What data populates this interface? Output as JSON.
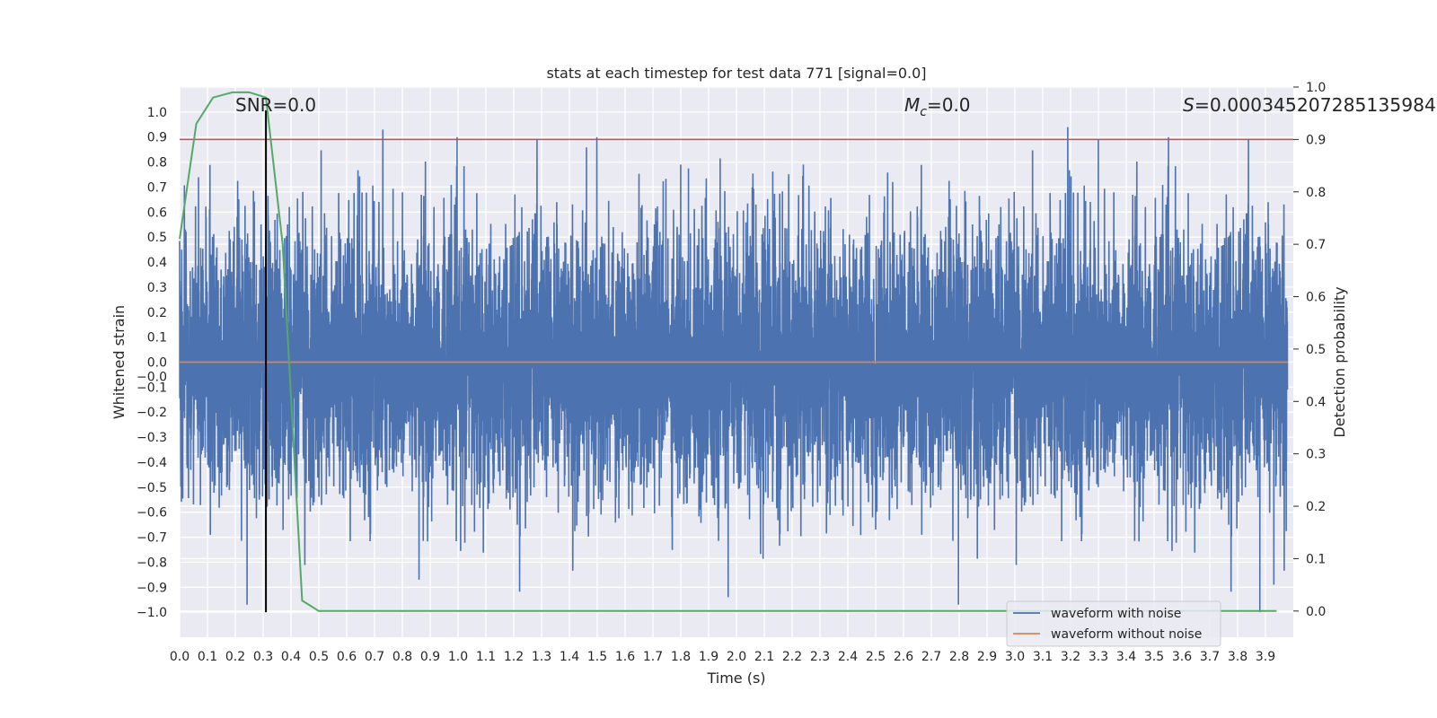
{
  "chart_data": {
    "type": "line",
    "title": "stats at each timestep for test data 771 [signal=0.0]",
    "xlabel": "Time (s)",
    "ylabel": "Whitened strain",
    "y2label": "Detection probability",
    "xlim": [
      0.0,
      4.0
    ],
    "ylim": [
      -1.1,
      1.1
    ],
    "y2lim": [
      -0.05,
      1.0
    ],
    "grid": true,
    "legend_position": "bottom-right",
    "x_ticks": [
      "0.0",
      "0.1",
      "0.2",
      "0.3",
      "0.4",
      "0.5",
      "0.6",
      "0.7",
      "0.8",
      "0.9",
      "1.0",
      "1.1",
      "1.2",
      "1.3",
      "1.4",
      "1.5",
      "1.6",
      "1.7",
      "1.8",
      "1.9",
      "2.0",
      "2.1",
      "2.2",
      "2.3",
      "2.4",
      "2.5",
      "2.6",
      "2.7",
      "2.8",
      "2.9",
      "3.0",
      "3.1",
      "3.2",
      "3.3",
      "3.4",
      "3.5",
      "3.6",
      "3.7",
      "3.8",
      "3.9"
    ],
    "y_ticks": [
      "1.0",
      "0.9",
      "0.8",
      "0.7",
      "0.6",
      "0.5",
      "0.4",
      "0.3",
      "0.2",
      "0.1",
      "0.0",
      "-0.0",
      "-0.1",
      "-0.2",
      "-0.3",
      "-0.4",
      "-0.5",
      "-0.6",
      "-0.7",
      "-0.8",
      "-0.9",
      "-1.0"
    ],
    "y2_ticks": [
      "1.0",
      "0.9",
      "0.8",
      "0.7",
      "0.6",
      "0.5",
      "0.4",
      "0.3",
      "0.2",
      "0.1",
      "0.0"
    ],
    "annotations": [
      {
        "name": "snr",
        "text": "SNR=0.0"
      },
      {
        "name": "mc",
        "text": "M",
        "sub": "c",
        "rest": "=0.0"
      },
      {
        "name": "s",
        "text": "S",
        "rest": "=0.000345207285135984"
      }
    ],
    "threshold": {
      "value": 0.9,
      "axis": "right",
      "color": "#c44e52"
    },
    "marker_time": 0.31,
    "series": [
      {
        "name": "waveform with noise",
        "color": "#4c72b0",
        "axis": "left",
        "kind": "noise",
        "samples_per_second": 2048,
        "approx_std": 0.27,
        "notable_peaks": [
          [
            0.73,
            0.93
          ],
          [
            1.8,
            0.79
          ],
          [
            2.24,
            0.79
          ],
          [
            3.19,
            0.94
          ],
          [
            3.3,
            0.89
          ],
          [
            1.97,
            -0.94
          ],
          [
            3.88,
            -1.0
          ],
          [
            0.86,
            -0.87
          ],
          [
            3.93,
            -0.89
          ]
        ]
      },
      {
        "name": "waveform without noise",
        "color": "#dd8452",
        "axis": "left",
        "kind": "constant",
        "value": 0.0
      },
      {
        "name": "",
        "color": "#55a868",
        "axis": "right",
        "kind": "line",
        "x": [
          0.0,
          0.06,
          0.12,
          0.19,
          0.25,
          0.31,
          0.37,
          0.44,
          0.5,
          0.56,
          0.62,
          1.0,
          2.0,
          3.0,
          3.94
        ],
        "y": [
          0.71,
          0.93,
          0.98,
          0.99,
          0.99,
          0.98,
          0.7,
          0.02,
          0.0,
          0.0,
          0.0,
          0.0,
          0.0,
          0.0,
          0.0
        ]
      }
    ]
  }
}
